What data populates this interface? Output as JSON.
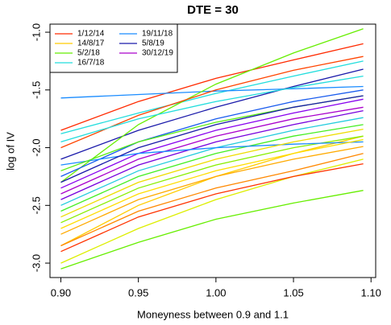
{
  "chart_data": {
    "type": "line",
    "title": "DTE = 30",
    "x_label": "Moneyness between 0.9 and 1.1",
    "y_label": "log of IV",
    "x": [
      0.9,
      0.95,
      1.0,
      1.05,
      1.095
    ],
    "xlim": [
      0.893,
      1.103
    ],
    "ylim": [
      -3.125,
      -0.93
    ],
    "xticks": [
      {
        "value": 0.9,
        "label": "0.90"
      },
      0.95,
      {
        "value": 1.0,
        "label": "1.00"
      },
      1.05,
      {
        "value": 1.1,
        "label": "1.10"
      }
    ],
    "yticks": [
      {
        "value": -3.0,
        "label": "-3.0"
      },
      -2.5,
      {
        "value": -2.0,
        "label": "-2.0"
      },
      -1.5,
      {
        "value": -1.0,
        "label": "-1.0"
      }
    ],
    "legend": "top-left",
    "series": [
      {
        "name": "1/12/14",
        "color": "#ff2a00",
        "values": [
          -1.85,
          -1.6,
          -1.4,
          -1.24,
          -1.1
        ]
      },
      {
        "name": "14/8/17",
        "color": "#ffcc00",
        "values": [
          -2.85,
          -2.5,
          -2.25,
          -2.05,
          -1.9
        ]
      },
      {
        "name": "5/2/18",
        "color": "#66ee00",
        "values": [
          -3.05,
          -2.82,
          -2.62,
          -2.48,
          -2.37
        ]
      },
      {
        "name": "16/7/18",
        "color": "#22dddd",
        "values": [
          -1.88,
          -1.7,
          -1.53,
          -1.38,
          -1.25
        ]
      },
      {
        "name": "19/11/18",
        "color": "#1a8cff",
        "values": [
          -1.57,
          -1.54,
          -1.51,
          -1.49,
          -1.47
        ]
      },
      {
        "name": "5/8/19",
        "color": "#1a1aaa",
        "values": [
          -2.1,
          -1.85,
          -1.65,
          -1.47,
          -1.32
        ]
      },
      {
        "name": "30/12/19",
        "color": "#aa00cc",
        "values": [
          -2.4,
          -2.1,
          -1.9,
          -1.75,
          -1.65
        ]
      },
      {
        "color": "#66ee00",
        "values": [
          -2.3,
          -1.8,
          -1.45,
          -1.18,
          -0.97
        ]
      },
      {
        "color": "#ff4400",
        "values": [
          -2.0,
          -1.72,
          -1.5,
          -1.33,
          -1.21
        ]
      },
      {
        "color": "#ff8800",
        "values": [
          -2.85,
          -2.55,
          -2.35,
          -2.2,
          -2.05
        ]
      },
      {
        "color": "#ffaa00",
        "values": [
          -2.75,
          -2.45,
          -2.25,
          -2.1,
          -1.99
        ]
      },
      {
        "color": "#ddee00",
        "values": [
          -3.0,
          -2.7,
          -2.45,
          -2.25,
          -2.1
        ]
      },
      {
        "color": "#88ee00",
        "values": [
          -2.65,
          -2.35,
          -2.15,
          -2.0,
          -1.9
        ]
      },
      {
        "color": "#22dddd",
        "values": [
          -1.95,
          -1.75,
          -1.6,
          -1.48,
          -1.38
        ]
      },
      {
        "color": "#1a5cee",
        "values": [
          -2.25,
          -1.95,
          -1.75,
          -1.6,
          -1.5
        ]
      },
      {
        "color": "#8800ee",
        "values": [
          -2.35,
          -2.05,
          -1.85,
          -1.7,
          -1.58
        ]
      },
      {
        "color": "#7700dd",
        "values": [
          -2.45,
          -2.15,
          -1.95,
          -1.8,
          -1.68
        ]
      },
      {
        "color": "#44ee22",
        "values": [
          -2.55,
          -2.25,
          -2.05,
          -1.9,
          -1.8
        ]
      },
      {
        "color": "#22ccdd",
        "values": [
          -2.5,
          -2.2,
          -2.0,
          -1.85,
          -1.74
        ]
      },
      {
        "color": "#1a8cff",
        "values": [
          -2.15,
          -2.05,
          -2.0,
          -1.97,
          -1.95
        ]
      },
      {
        "color": "#ffdd00",
        "values": [
          -2.7,
          -2.4,
          -2.2,
          -2.05,
          -1.93
        ]
      },
      {
        "color": "#ff3300",
        "values": [
          -2.9,
          -2.6,
          -2.4,
          -2.25,
          -2.14
        ]
      },
      {
        "color": "#55ee11",
        "values": [
          -2.2,
          -1.95,
          -1.78,
          -1.65,
          -1.55
        ]
      },
      {
        "color": "#1a1aaa",
        "values": [
          -2.3,
          -2.0,
          -1.8,
          -1.65,
          -1.55
        ]
      },
      {
        "color": "#eedd00",
        "values": [
          -2.6,
          -2.3,
          -2.1,
          -1.95,
          -1.84
        ]
      }
    ]
  }
}
